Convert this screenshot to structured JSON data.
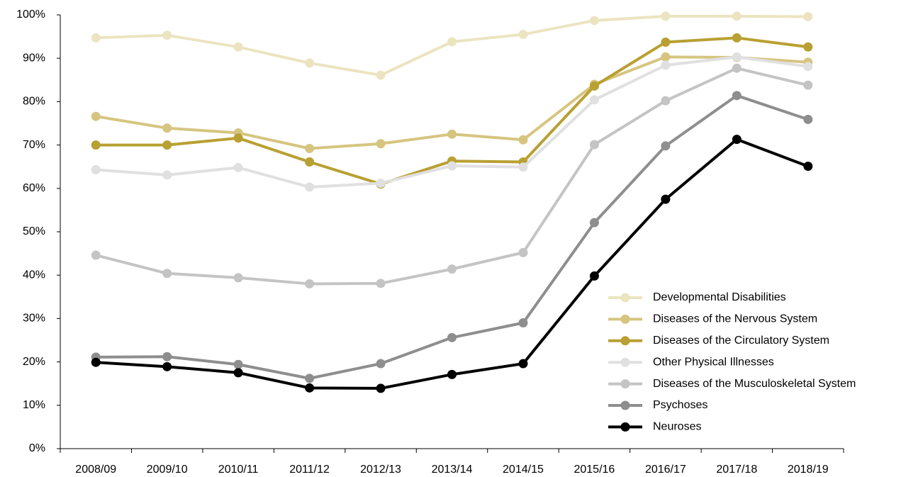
{
  "chart_data": {
    "type": "line",
    "categories": [
      "2008/09",
      "2009/10",
      "2010/11",
      "2011/12",
      "2012/13",
      "2013/14",
      "2014/15",
      "2015/16",
      "2016/17",
      "2017/18",
      "2018/19"
    ],
    "series": [
      {
        "name": "Developmental Disabilities",
        "color": "#ece4c0",
        "values": [
          94.7,
          95.3,
          92.6,
          88.9,
          86.1,
          93.8,
          95.5,
          98.7,
          99.7,
          99.7,
          99.6
        ]
      },
      {
        "name": "Diseases of the Nervous System",
        "color": "#d6c580",
        "values": [
          76.6,
          73.9,
          72.8,
          69.2,
          70.3,
          72.5,
          71.2,
          84.0,
          90.3,
          90.2,
          89.1
        ]
      },
      {
        "name": "Diseases of the Circulatory System",
        "color": "#b8a032",
        "values": [
          70.0,
          70.0,
          71.6,
          66.1,
          61.0,
          66.3,
          66.1,
          83.6,
          93.7,
          94.7,
          92.6
        ]
      },
      {
        "name": "Other Physical Illnesses",
        "color": "#e0e0e0",
        "values": [
          64.3,
          63.1,
          64.8,
          60.3,
          61.2,
          65.2,
          64.9,
          80.4,
          88.4,
          90.3,
          88.1
        ]
      },
      {
        "name": "Diseases of the Musculoskeletal System",
        "color": "#c4c4c4",
        "values": [
          44.6,
          40.4,
          39.4,
          38.0,
          38.1,
          41.4,
          45.2,
          70.1,
          80.2,
          87.7,
          83.8
        ]
      },
      {
        "name": "Psychoses",
        "color": "#8e8e8e",
        "values": [
          21.1,
          21.2,
          19.4,
          16.2,
          19.6,
          25.6,
          29.0,
          52.1,
          69.8,
          81.4,
          75.9
        ]
      },
      {
        "name": "Neuroses",
        "color": "#000000",
        "values": [
          19.9,
          18.9,
          17.5,
          14.0,
          13.9,
          17.1,
          19.6,
          39.8,
          57.5,
          71.3,
          65.1
        ]
      }
    ],
    "ylim": [
      0,
      100
    ],
    "yticks": [
      {
        "value": 0,
        "label": "0%"
      },
      {
        "value": 10,
        "label": "10%"
      },
      {
        "value": 20,
        "label": "20%"
      },
      {
        "value": 30,
        "label": "30%"
      },
      {
        "value": 40,
        "label": "40%"
      },
      {
        "value": 50,
        "label": "50%"
      },
      {
        "value": 60,
        "label": "60%"
      },
      {
        "value": 70,
        "label": "70%"
      },
      {
        "value": 80,
        "label": "80%"
      },
      {
        "value": 90,
        "label": "90%"
      },
      {
        "value": 100,
        "label": "100%"
      }
    ],
    "legend": "lower right"
  }
}
